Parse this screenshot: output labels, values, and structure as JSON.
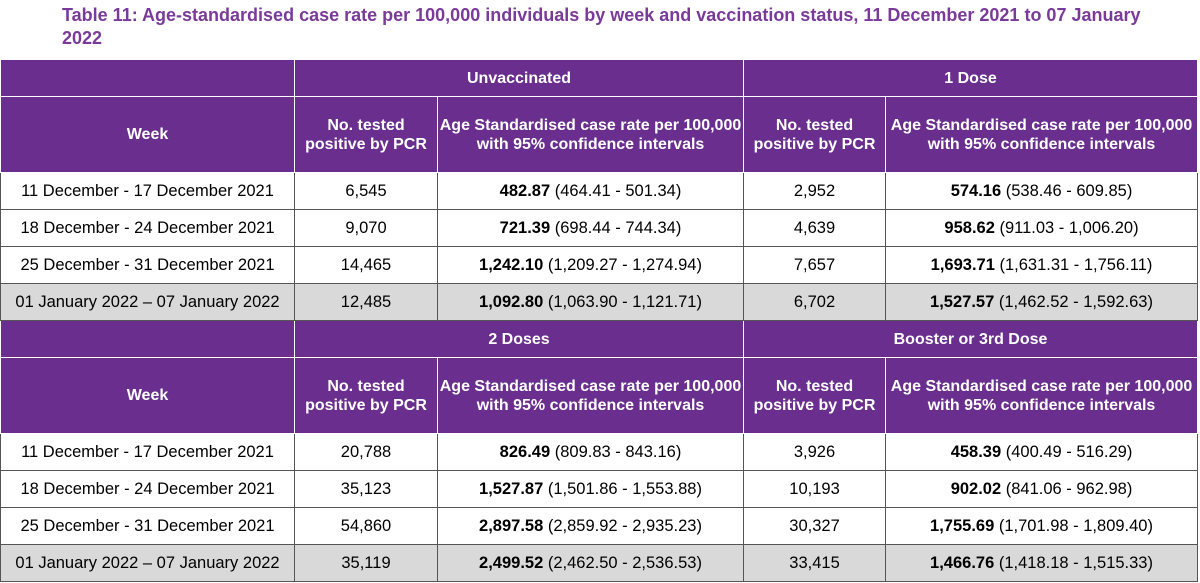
{
  "title": "Table 11: Age-standardised case rate per 100,000 individuals by week and vaccination status, 11 December 2021 to 07 January 2022",
  "headers": {
    "week": "Week",
    "tested": "No. tested positive by PCR",
    "rate": "Age Standardised case rate per 100,000 with 95% confidence intervals"
  },
  "sections": [
    {
      "groups": [
        "Unvaccinated",
        "1 Dose"
      ],
      "rows": [
        {
          "week": "11 December - 17 December 2021",
          "a_n": "6,545",
          "a_rate": "482.87",
          "a_ci": "(464.41 - 501.34)",
          "b_n": "2,952",
          "b_rate": "574.16",
          "b_ci": "(538.46 - 609.85)"
        },
        {
          "week": "18 December - 24 December 2021",
          "a_n": "9,070",
          "a_rate": "721.39",
          "a_ci": "(698.44 - 744.34)",
          "b_n": "4,639",
          "b_rate": "958.62",
          "b_ci": "(911.03 - 1,006.20)"
        },
        {
          "week": "25 December - 31 December 2021",
          "a_n": "14,465",
          "a_rate": "1,242.10",
          "a_ci": "(1,209.27 - 1,274.94)",
          "b_n": "7,657",
          "b_rate": "1,693.71",
          "b_ci": "(1,631.31 - 1,756.11)"
        },
        {
          "week": "01 January 2022 – 07 January 2022",
          "a_n": "12,485",
          "a_rate": "1,092.80",
          "a_ci": "(1,063.90 - 1,121.71)",
          "b_n": "6,702",
          "b_rate": "1,527.57",
          "b_ci": "(1,462.52 - 1,592.63)"
        }
      ]
    },
    {
      "groups": [
        "2 Doses",
        "Booster or 3rd Dose"
      ],
      "rows": [
        {
          "week": "11 December - 17 December 2021",
          "a_n": "20,788",
          "a_rate": "826.49",
          "a_ci": "(809.83 - 843.16)",
          "b_n": "3,926",
          "b_rate": "458.39",
          "b_ci": "(400.49 - 516.29)"
        },
        {
          "week": "18 December - 24 December 2021",
          "a_n": "35,123",
          "a_rate": "1,527.87",
          "a_ci": "(1,501.86 - 1,553.88)",
          "b_n": "10,193",
          "b_rate": "902.02",
          "b_ci": "(841.06 - 962.98)"
        },
        {
          "week": "25 December - 31 December 2021",
          "a_n": "54,860",
          "a_rate": "2,897.58",
          "a_ci": "(2,859.92 - 2,935.23)",
          "b_n": "30,327",
          "b_rate": "1,755.69",
          "b_ci": "(1,701.98 - 1,809.40)"
        },
        {
          "week": "01 January 2022 – 07 January 2022",
          "a_n": "35,119",
          "a_rate": "2,499.52",
          "a_ci": "(2,462.50 - 2,536.53)",
          "b_n": "33,415",
          "b_rate": "1,466.76",
          "b_ci": "(1,418.18 - 1,515.33)"
        }
      ]
    }
  ],
  "colors": {
    "header_bg": "#6a2f8e",
    "title": "#7a3a9a",
    "shaded_row": "#d9d9d9"
  }
}
